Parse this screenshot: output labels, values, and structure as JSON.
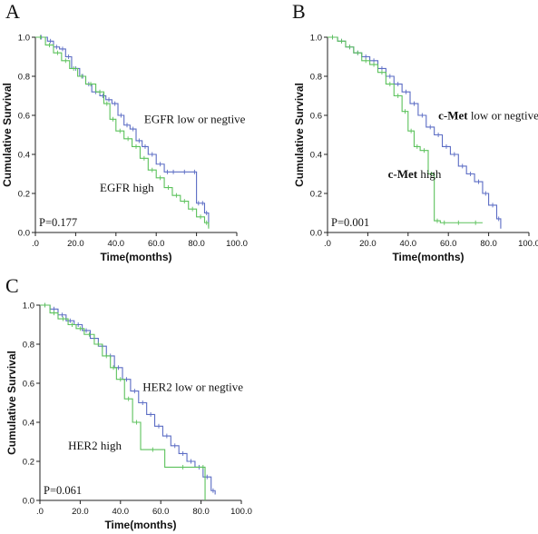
{
  "chart_data": [
    {
      "panel": "A",
      "type": "line",
      "xlabel": "Time(months)",
      "ylabel": "Cumulative Survival",
      "xlim": [
        0,
        100
      ],
      "ylim": [
        0,
        1.0
      ],
      "xticks": [
        ".0",
        "20.0",
        "40.0",
        "60.0",
        "80.0",
        "100.0"
      ],
      "yticks": [
        "0.0",
        "0.2",
        "0.4",
        "0.6",
        "0.8",
        "1.0"
      ],
      "series": [
        {
          "name": "EGFR low or negtive",
          "color": "#5b6cc4",
          "x": [
            0,
            6,
            9,
            12,
            15,
            18,
            22,
            25,
            28,
            32,
            35,
            38,
            41,
            44,
            47,
            50,
            53,
            56,
            60,
            64,
            67,
            70,
            78,
            80,
            82,
            84,
            86
          ],
          "y": [
            1.0,
            0.98,
            0.95,
            0.94,
            0.9,
            0.84,
            0.8,
            0.76,
            0.72,
            0.7,
            0.68,
            0.66,
            0.6,
            0.55,
            0.53,
            0.47,
            0.44,
            0.4,
            0.35,
            0.31,
            0.31,
            0.31,
            0.31,
            0.15,
            0.15,
            0.1,
            0.03
          ]
        },
        {
          "name": "EGFR high",
          "color": "#5cc25c",
          "x": [
            0,
            5,
            9,
            13,
            17,
            21,
            25,
            30,
            34,
            37,
            40,
            44,
            48,
            52,
            56,
            60,
            64,
            68,
            72,
            76,
            80,
            84,
            86
          ],
          "y": [
            1.0,
            0.96,
            0.92,
            0.88,
            0.84,
            0.8,
            0.76,
            0.72,
            0.66,
            0.58,
            0.52,
            0.48,
            0.44,
            0.38,
            0.32,
            0.28,
            0.23,
            0.19,
            0.16,
            0.12,
            0.08,
            0.05,
            0.02
          ]
        }
      ],
      "annotations": [
        {
          "text": "EGFR low or negtive",
          "x": 54,
          "y": 0.56
        },
        {
          "text": "EGFR high",
          "x": 32,
          "y": 0.21
        }
      ],
      "pvalue": "P=0.177"
    },
    {
      "panel": "B",
      "type": "line",
      "xlabel": "Time(months)",
      "ylabel": "Cumulative Survival",
      "xlim": [
        0,
        100
      ],
      "ylim": [
        0,
        1.0
      ],
      "xticks": [
        ".0",
        "20.0",
        "40.0",
        "60.0",
        "80.0",
        "100.0"
      ],
      "yticks": [
        "0.0",
        "0.2",
        "0.4",
        "0.6",
        "0.8",
        "1.0"
      ],
      "series": [
        {
          "name": "c-Met low or negtive",
          "color": "#5b6cc4",
          "x": [
            0,
            5,
            9,
            13,
            17,
            21,
            25,
            29,
            33,
            37,
            41,
            45,
            49,
            53,
            57,
            61,
            65,
            69,
            73,
            77,
            80,
            84,
            86
          ],
          "y": [
            1.0,
            0.98,
            0.95,
            0.92,
            0.9,
            0.88,
            0.84,
            0.8,
            0.76,
            0.72,
            0.66,
            0.6,
            0.54,
            0.5,
            0.44,
            0.4,
            0.34,
            0.3,
            0.26,
            0.2,
            0.14,
            0.07,
            0.02
          ]
        },
        {
          "name": "c-Met high",
          "color": "#5cc25c",
          "x": [
            0,
            5,
            9,
            13,
            17,
            21,
            25,
            29,
            33,
            37,
            40,
            43,
            46,
            50,
            53,
            56,
            60,
            70,
            77
          ],
          "y": [
            1.0,
            0.98,
            0.95,
            0.92,
            0.88,
            0.86,
            0.82,
            0.76,
            0.7,
            0.62,
            0.52,
            0.44,
            0.42,
            0.3,
            0.06,
            0.05,
            0.05,
            0.05,
            0.05
          ]
        }
      ],
      "annotations": [
        {
          "text": "c-Met",
          "bold": true,
          "after": " low or negtive",
          "x": 55,
          "y": 0.58
        },
        {
          "text": "c-Met",
          "bold": true,
          "after": " high",
          "x": 30,
          "y": 0.28
        }
      ],
      "pvalue": "P=0.001"
    },
    {
      "panel": "C",
      "type": "line",
      "xlabel": "Time(months)",
      "ylabel": "Cumulative Survival",
      "xlim": [
        0,
        100
      ],
      "ylim": [
        0,
        1.0
      ],
      "xticks": [
        ".0",
        "20.0",
        "40.0",
        "60.0",
        "80.0",
        "100.0"
      ],
      "yticks": [
        "0.0",
        "0.2",
        "0.4",
        "0.6",
        "0.8",
        "1.0"
      ],
      "series": [
        {
          "name": "HER2 low or negtive",
          "color": "#5b6cc4",
          "x": [
            0,
            5,
            9,
            13,
            17,
            21,
            25,
            29,
            33,
            37,
            41,
            45,
            49,
            53,
            57,
            61,
            65,
            69,
            73,
            77,
            81,
            85,
            87
          ],
          "y": [
            1.0,
            0.98,
            0.95,
            0.92,
            0.9,
            0.87,
            0.83,
            0.79,
            0.74,
            0.68,
            0.62,
            0.56,
            0.5,
            0.44,
            0.38,
            0.33,
            0.28,
            0.24,
            0.2,
            0.17,
            0.12,
            0.05,
            0.03
          ]
        },
        {
          "name": "HER2 high",
          "color": "#5cc25c",
          "x": [
            0,
            5,
            9,
            14,
            18,
            22,
            27,
            31,
            35,
            38,
            42,
            46,
            50,
            62,
            80,
            82
          ],
          "y": [
            1.0,
            0.96,
            0.93,
            0.9,
            0.88,
            0.85,
            0.8,
            0.74,
            0.68,
            0.62,
            0.52,
            0.4,
            0.26,
            0.17,
            0.17,
            0.0
          ]
        }
      ],
      "annotations": [
        {
          "text": "HER2 low or negtive",
          "x": 51,
          "y": 0.56
        },
        {
          "text": "HER2 high",
          "x": 14,
          "y": 0.26
        }
      ],
      "pvalue": "P=0.061"
    }
  ]
}
